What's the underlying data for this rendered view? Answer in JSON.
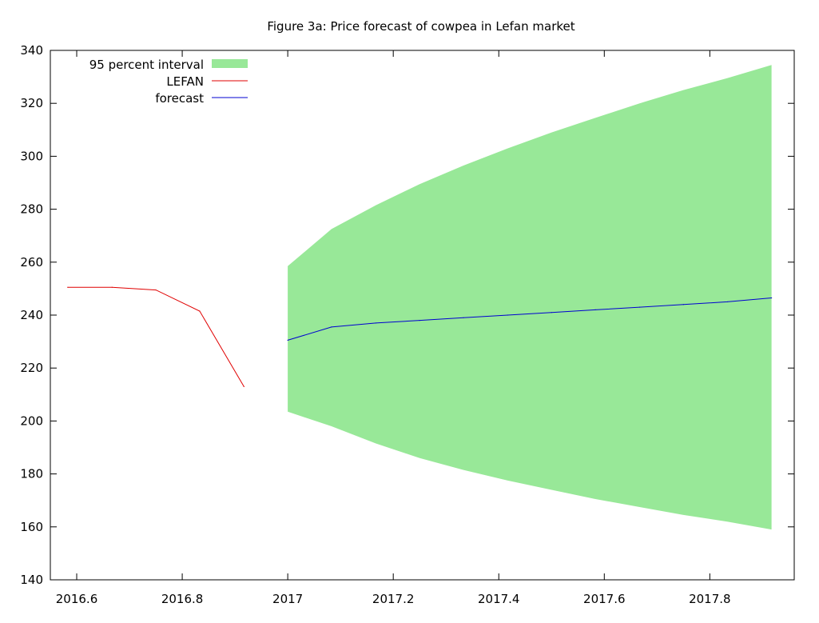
{
  "chart_data": {
    "type": "line",
    "title": "Figure 3a: Price forecast of cowpea in Lefan market",
    "xlabel": "",
    "ylabel": "",
    "xlim": [
      2016.55,
      2017.96
    ],
    "ylim": [
      140,
      340
    ],
    "x_ticks": [
      2016.6,
      2016.8,
      2017,
      2017.2,
      2017.4,
      2017.6,
      2017.8
    ],
    "x_tick_labels": [
      "2016.6",
      "2016.8",
      "2017",
      "2017.2",
      "2017.4",
      "2017.6",
      "2017.8"
    ],
    "y_ticks": [
      140,
      160,
      180,
      200,
      220,
      240,
      260,
      280,
      300,
      320,
      340
    ],
    "y_tick_labels": [
      "140",
      "160",
      "180",
      "200",
      "220",
      "240",
      "260",
      "280",
      "300",
      "320",
      "340"
    ],
    "grid": false,
    "legend_position": "top-left",
    "colors": {
      "interval": "#98e898",
      "lefan": "#e00000",
      "forecast": "#0000d0",
      "axis": "#000000"
    },
    "interval": {
      "name": "95 percent interval",
      "x": [
        2017.0,
        2017.083,
        2017.167,
        2017.25,
        2017.333,
        2017.417,
        2017.5,
        2017.583,
        2017.667,
        2017.75,
        2017.833,
        2017.917
      ],
      "lower": [
        203.5,
        198.0,
        191.5,
        186.0,
        181.5,
        177.5,
        174.0,
        170.5,
        167.5,
        164.5,
        162.0,
        159.0
      ],
      "upper": [
        258.5,
        272.5,
        281.5,
        289.5,
        296.5,
        303.0,
        309.0,
        314.5,
        320.0,
        325.0,
        329.5,
        334.5
      ]
    },
    "series": [
      {
        "name": "LEFAN",
        "x": [
          2016.583,
          2016.667,
          2016.75,
          2016.833,
          2016.917
        ],
        "values": [
          250.5,
          250.5,
          249.5,
          241.5,
          213.0
        ]
      },
      {
        "name": "forecast",
        "x": [
          2017.0,
          2017.083,
          2017.167,
          2017.25,
          2017.333,
          2017.417,
          2017.5,
          2017.583,
          2017.667,
          2017.75,
          2017.833,
          2017.917
        ],
        "values": [
          230.5,
          235.5,
          237.0,
          238.0,
          239.0,
          240.0,
          241.0,
          242.0,
          243.0,
          244.0,
          245.0,
          246.5
        ]
      }
    ]
  }
}
